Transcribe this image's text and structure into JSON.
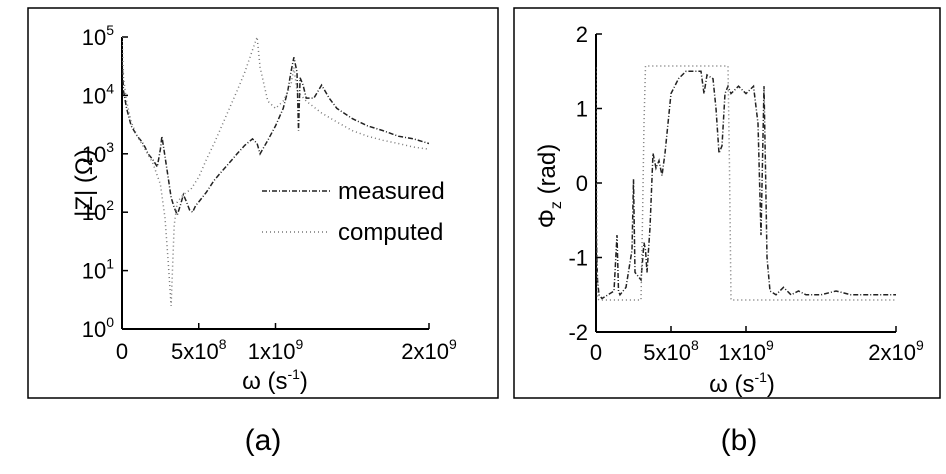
{
  "chart_data": [
    {
      "type": "line",
      "caption": "(a)",
      "ylabel": "|Z| (Ω)",
      "xlabel_main": "ω (s",
      "xlabel_sup": "-1",
      "xlabel_end": ")",
      "yscale": "log",
      "xlim": [
        0,
        2000000000
      ],
      "ylim": [
        1,
        100000
      ],
      "grid": false,
      "legend_position": "right",
      "x_ticks": [
        {
          "value": 0,
          "base": "0",
          "sup": ""
        },
        {
          "value": 500000000,
          "base": "5x10",
          "sup": "8"
        },
        {
          "value": 1000000000,
          "base": "1x10",
          "sup": "9"
        },
        {
          "value": 2000000000,
          "base": "2x10",
          "sup": "9"
        }
      ],
      "y_ticks": [
        {
          "value": 1,
          "base": "10",
          "sup": "0"
        },
        {
          "value": 10,
          "base": "10",
          "sup": "1"
        },
        {
          "value": 100,
          "base": "10",
          "sup": "2"
        },
        {
          "value": 1000,
          "base": "10",
          "sup": "3"
        },
        {
          "value": 10000,
          "base": "10",
          "sup": "4"
        },
        {
          "value": 100000,
          "base": "10",
          "sup": "5"
        }
      ],
      "series": [
        {
          "name": "measured",
          "style": "dash-dot",
          "color": "#222222",
          "x": [
            0,
            10000000,
            30000000,
            60000000,
            100000000,
            130000000,
            150000000,
            170000000,
            200000000,
            230000000,
            250000000,
            260000000,
            280000000,
            300000000,
            320000000,
            340000000,
            360000000,
            380000000,
            400000000,
            420000000,
            440000000,
            460000000,
            480000000,
            500000000,
            550000000,
            600000000,
            650000000,
            700000000,
            750000000,
            800000000,
            850000000,
            880000000,
            900000000,
            950000000,
            1000000000,
            1050000000,
            1080000000,
            1100000000,
            1120000000,
            1140000000,
            1150000000,
            1160000000,
            1180000000,
            1200000000,
            1250000000,
            1300000000,
            1350000000,
            1400000000,
            1500000000,
            1600000000,
            1700000000,
            1800000000,
            1900000000,
            2000000000
          ],
          "y": [
            40000,
            12000,
            6000,
            3000,
            2000,
            1600,
            1300,
            1000,
            800,
            600,
            1200,
            2000,
            900,
            400,
            180,
            120,
            90,
            130,
            200,
            150,
            110,
            100,
            130,
            150,
            220,
            350,
            500,
            700,
            1000,
            1400,
            1800,
            1500,
            1000,
            1700,
            3000,
            6000,
            12000,
            25000,
            45000,
            25000,
            2500,
            20000,
            15000,
            9000,
            9000,
            15000,
            9000,
            6000,
            4000,
            3000,
            2500,
            2000,
            1800,
            1500
          ]
        },
        {
          "name": "computed",
          "style": "dotted",
          "color": "#777777",
          "x": [
            0,
            10000000,
            30000000,
            60000000,
            100000000,
            150000000,
            200000000,
            250000000,
            280000000,
            300000000,
            320000000,
            340000000,
            360000000,
            400000000,
            450000000,
            500000000,
            550000000,
            600000000,
            650000000,
            700000000,
            750000000,
            800000000,
            850000000,
            880000000,
            900000000,
            950000000,
            1000000000,
            1050000000,
            1100000000,
            1120000000,
            1140000000,
            1200000000,
            1300000000,
            1400000000,
            1500000000,
            1600000000,
            1700000000,
            1800000000,
            1900000000,
            2000000000
          ],
          "y": [
            100000,
            20000,
            8000,
            3500,
            2000,
            1200,
            700,
            300,
            80,
            15,
            2.5,
            60,
            150,
            200,
            250,
            400,
            800,
            1500,
            3000,
            6000,
            12000,
            25000,
            60000,
            100000,
            30000,
            8000,
            6000,
            8000,
            15000,
            30000,
            12000,
            8000,
            5000,
            3500,
            2500,
            2000,
            1700,
            1500,
            1300,
            1200
          ]
        }
      ]
    },
    {
      "type": "line",
      "caption": "(b)",
      "ylabel_base": "Φ",
      "ylabel_sub": "z",
      "ylabel_end": " (rad)",
      "xlabel_main": "ω (s",
      "xlabel_sup": "-1",
      "xlabel_end": ")",
      "xlim": [
        0,
        2000000000
      ],
      "ylim": [
        -2,
        2
      ],
      "grid": false,
      "x_ticks": [
        {
          "value": 0,
          "base": "0",
          "sup": ""
        },
        {
          "value": 500000000,
          "base": "5x10",
          "sup": "8"
        },
        {
          "value": 1000000000,
          "base": "1x10",
          "sup": "9"
        },
        {
          "value": 2000000000,
          "base": "2x10",
          "sup": "9"
        }
      ],
      "y_ticks": [
        {
          "value": -2,
          "label": "-2"
        },
        {
          "value": -1,
          "label": "-1"
        },
        {
          "value": 0,
          "label": "0"
        },
        {
          "value": 1,
          "label": "1"
        },
        {
          "value": 2,
          "label": "2"
        }
      ],
      "series": [
        {
          "name": "measured",
          "style": "dash-dot",
          "color": "#222222",
          "x": [
            0,
            10000000,
            20000000,
            40000000,
            80000000,
            120000000,
            140000000,
            150000000,
            160000000,
            200000000,
            240000000,
            250000000,
            260000000,
            300000000,
            320000000,
            330000000,
            340000000,
            360000000,
            380000000,
            400000000,
            420000000,
            440000000,
            460000000,
            480000000,
            500000000,
            550000000,
            600000000,
            650000000,
            700000000,
            720000000,
            740000000,
            780000000,
            800000000,
            820000000,
            840000000,
            860000000,
            880000000,
            900000000,
            950000000,
            1000000000,
            1050000000,
            1080000000,
            1100000000,
            1120000000,
            1130000000,
            1140000000,
            1160000000,
            1200000000,
            1250000000,
            1300000000,
            1350000000,
            1400000000,
            1500000000,
            1600000000,
            1700000000,
            1800000000,
            1900000000,
            2000000000
          ],
          "y": [
            -0.6,
            -1.3,
            -1.5,
            -1.55,
            -1.5,
            -1.45,
            -0.7,
            -1.45,
            -1.5,
            -1.4,
            -0.9,
            0.05,
            -1.2,
            -1.3,
            -0.8,
            -0.9,
            -1.2,
            -0.6,
            0.4,
            0.2,
            0.3,
            0.1,
            0.4,
            0.8,
            1.2,
            1.4,
            1.5,
            1.5,
            1.5,
            1.2,
            1.45,
            1.4,
            1.0,
            0.4,
            0.5,
            1.2,
            1.3,
            1.2,
            1.3,
            1.2,
            1.3,
            0.8,
            -0.7,
            1.3,
            0.2,
            -1.0,
            -1.45,
            -1.5,
            -1.4,
            -1.5,
            -1.45,
            -1.5,
            -1.5,
            -1.45,
            -1.5,
            -1.5,
            -1.5,
            -1.5
          ]
        },
        {
          "name": "computed",
          "style": "dotted",
          "color": "#777777",
          "x": [
            0,
            10000000,
            20000000,
            300000000,
            310000000,
            320000000,
            330000000,
            500000000,
            600000000,
            700000000,
            800000000,
            880000000,
            890000000,
            900000000,
            1000000000,
            1100000000,
            1120000000,
            1200000000,
            1300000000,
            1500000000,
            1800000000,
            2000000000
          ],
          "y": [
            1.55,
            -1.55,
            -1.57,
            -1.57,
            -0.5,
            0.8,
            1.57,
            1.57,
            1.57,
            1.57,
            1.57,
            1.57,
            0.2,
            -1.57,
            -1.57,
            -1.57,
            -1.57,
            -1.57,
            -1.57,
            -1.57,
            -1.57,
            -1.57
          ]
        }
      ]
    }
  ]
}
